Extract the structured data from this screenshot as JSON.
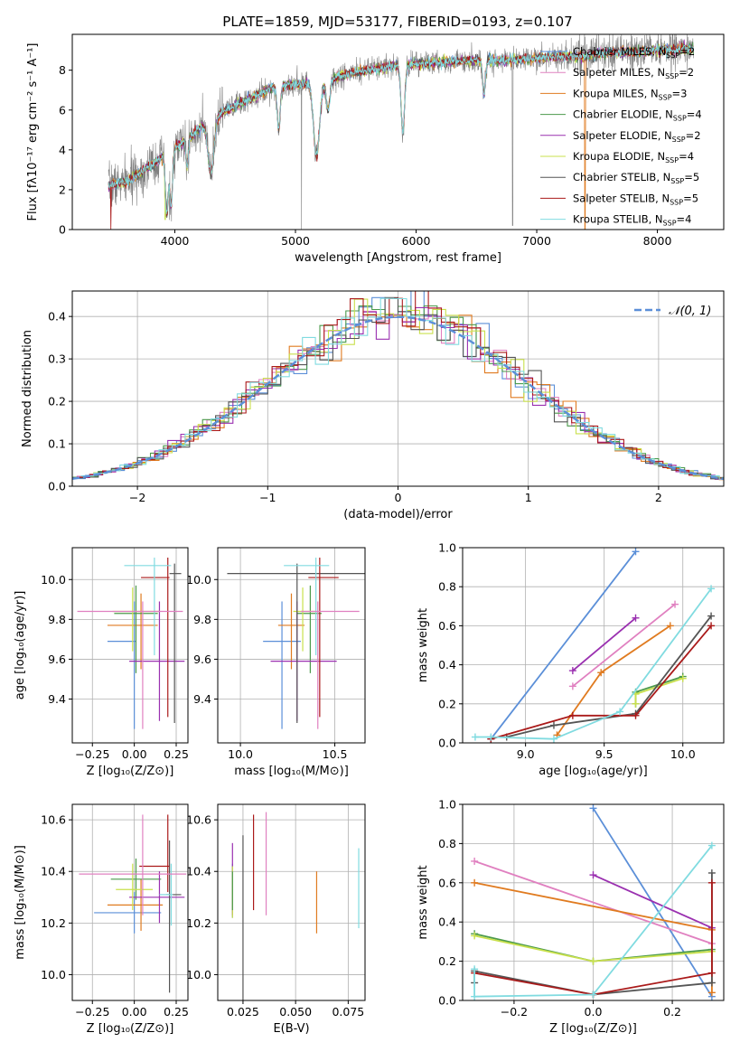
{
  "figure": {
    "title": "PLATE=1859, MJD=53177, FIBERID=0193, z=0.107"
  },
  "colors": {
    "blue": "#5b8fd8",
    "orange": "#e07b20",
    "green": "#4c9a4c",
    "purple": "#9a30b0",
    "yellowgreen": "#c9e04c",
    "gray": "#555555",
    "red": "#aa1a1a",
    "cyan": "#80dbe0",
    "pink": "#e080c0",
    "data": "#808080"
  },
  "chart_data": [
    {
      "id": "spectrum",
      "type": "line",
      "xlabel": "wavelength [Angstrom, rest frame]",
      "ylabel": "Flux [fλ10⁻¹⁷ erg cm⁻² s⁻¹ A⁻¹]",
      "xlim": [
        3150,
        8550
      ],
      "ylim": [
        0,
        9.8
      ],
      "xticks": [
        4000,
        5000,
        6000,
        7000,
        8000
      ],
      "yticks": [
        0,
        2,
        4,
        6,
        8
      ],
      "legend_position": "top-right",
      "continuum": {
        "x": [
          3450,
          3600,
          3800,
          3950,
          4100,
          4300,
          4500,
          4800,
          5000,
          5200,
          5500,
          5800,
          6000,
          6200,
          6500,
          6800,
          7000,
          7200,
          7400,
          7600,
          7800,
          8000,
          8300
        ],
        "y": [
          2.2,
          2.4,
          3.2,
          3.9,
          4.5,
          5.6,
          6.2,
          7.1,
          7.3,
          7.4,
          7.9,
          8.2,
          8.3,
          8.4,
          8.5,
          8.5,
          8.6,
          8.7,
          8.7,
          8.9,
          8.9,
          9.0,
          9.1
        ]
      },
      "series": [
        {
          "name": "Chabrier MILES, N_SSP=2",
          "color": "blue"
        },
        {
          "name": "Salpeter MILES, N_SSP=2",
          "color": "pink"
        },
        {
          "name": "Kroupa MILES, N_SSP=3",
          "color": "orange"
        },
        {
          "name": "Chabrier ELODIE, N_SSP=4",
          "color": "green"
        },
        {
          "name": "Salpeter ELODIE, N_SSP=2",
          "color": "purple"
        },
        {
          "name": "Kroupa ELODIE, N_SSP=4",
          "color": "yellowgreen"
        },
        {
          "name": "Chabrier STELIB, N_SSP=5",
          "color": "gray"
        },
        {
          "name": "Salpeter STELIB, N_SSP=5",
          "color": "red"
        },
        {
          "name": "Kroupa STELIB, N_SSP=4",
          "color": "cyan"
        }
      ]
    },
    {
      "id": "residuals",
      "type": "histogram",
      "xlabel": "(data-model)/error",
      "ylabel": "Normed distribution",
      "xlim": [
        -2.5,
        2.5
      ],
      "ylim": [
        0,
        0.46
      ],
      "xticks": [
        -2,
        -1,
        0,
        1,
        2
      ],
      "yticks": [
        0.0,
        0.1,
        0.2,
        0.3,
        0.4
      ],
      "legend_label": "𝒩(0, 1)",
      "legend_position": "top-right",
      "bin_width": 0.1,
      "series_colors": [
        "blue",
        "pink",
        "orange",
        "green",
        "purple",
        "yellowgreen",
        "gray",
        "red",
        "cyan"
      ]
    },
    {
      "id": "age_vs_Z",
      "type": "errorbar",
      "xlabel": "Z [log₁₀(Z/Z⊙)]",
      "ylabel": "age  [log₁₀(age/yr)]",
      "xlim": [
        -0.37,
        0.32
      ],
      "ylim": [
        9.18,
        10.16
      ],
      "xticks": [
        -0.25,
        0.0,
        0.25
      ],
      "xticklabels": [
        "−0.25",
        "0.00",
        "0.25"
      ],
      "yticks": [
        9.4,
        9.6,
        9.8,
        10.0
      ],
      "points": [
        {
          "color": "blue",
          "x": 0.0,
          "xerr": [
            0.16,
            0.01
          ],
          "y": 9.69,
          "yerr": [
            0.44,
            0.2
          ]
        },
        {
          "color": "orange",
          "x": 0.04,
          "xerr": [
            0.2,
            0.1
          ],
          "y": 9.77,
          "yerr": [
            0.22,
            0.16
          ]
        },
        {
          "color": "green",
          "x": 0.01,
          "xerr": [
            0.13,
            0.13
          ],
          "y": 9.83,
          "yerr": [
            0.3,
            0.14
          ]
        },
        {
          "color": "purple",
          "x": 0.15,
          "xerr": [
            0.18,
            0.15
          ],
          "y": 9.59,
          "yerr": [
            0.3,
            0.3
          ]
        },
        {
          "color": "yellowgreen",
          "x": -0.01,
          "xerr": [
            0.12,
            0.16
          ],
          "y": 9.84,
          "yerr": [
            0.2,
            0.12
          ]
        },
        {
          "color": "gray",
          "x": 0.24,
          "xerr": [
            0.03,
            0.04
          ],
          "y": 10.03,
          "yerr": [
            0.75,
            0.05
          ]
        },
        {
          "color": "red",
          "x": 0.2,
          "xerr": [
            0.16,
            0.01
          ],
          "y": 10.01,
          "yerr": [
            0.7,
            0.1
          ]
        },
        {
          "color": "cyan",
          "x": 0.12,
          "xerr": [
            0.18,
            0.1
          ],
          "y": 10.07,
          "yerr": [
            0.45,
            0.04
          ]
        },
        {
          "color": "pink",
          "x": 0.05,
          "xerr": [
            0.39,
            0.24
          ],
          "y": 9.84,
          "yerr": [
            0.59,
            0.05
          ]
        }
      ]
    },
    {
      "id": "age_vs_mass",
      "type": "errorbar",
      "xlabel": "mass [log₁₀(M/M⊙)]",
      "ylabel": "",
      "xlim": [
        9.88,
        10.66
      ],
      "ylim": [
        9.18,
        10.16
      ],
      "xticks": [
        10.0,
        10.5
      ],
      "xticklabels": [
        "10.0",
        "10.5"
      ],
      "yticks": [
        9.4,
        9.6,
        9.8,
        10.0
      ],
      "points": [
        {
          "color": "blue",
          "x": 10.22,
          "xerr": [
            0.1,
            0.1
          ],
          "y": 9.69,
          "yerr": [
            0.44,
            0.2
          ]
        },
        {
          "color": "orange",
          "x": 10.27,
          "xerr": [
            0.07,
            0.07
          ],
          "y": 9.77,
          "yerr": [
            0.22,
            0.16
          ]
        },
        {
          "color": "green",
          "x": 10.37,
          "xerr": [
            0.07,
            0.06
          ],
          "y": 9.83,
          "yerr": [
            0.3,
            0.14
          ]
        },
        {
          "color": "purple",
          "x": 10.3,
          "xerr": [
            0.14,
            0.21
          ],
          "y": 9.59,
          "yerr": [
            0.3,
            0.3
          ]
        },
        {
          "color": "yellowgreen",
          "x": 10.33,
          "xerr": [
            0.05,
            0.07
          ],
          "y": 9.84,
          "yerr": [
            0.2,
            0.12
          ]
        },
        {
          "color": "gray",
          "x": 10.3,
          "xerr": [
            0.37,
            0.43
          ],
          "y": 10.03,
          "yerr": [
            0.75,
            0.05
          ]
        },
        {
          "color": "red",
          "x": 10.42,
          "xerr": [
            0.06,
            0.1
          ],
          "y": 10.01,
          "yerr": [
            0.7,
            0.1
          ]
        },
        {
          "color": "cyan",
          "x": 10.4,
          "xerr": [
            0.17,
            0.07
          ],
          "y": 10.07,
          "yerr": [
            0.45,
            0.04
          ]
        },
        {
          "color": "pink",
          "x": 10.41,
          "xerr": [
            0.09,
            0.22
          ],
          "y": 9.84,
          "yerr": [
            0.59,
            0.05
          ]
        }
      ]
    },
    {
      "id": "weight_vs_age",
      "type": "line",
      "xlabel": "age  [log₁₀(age/yr)]",
      "ylabel": "mass weight",
      "xlim": [
        8.6,
        10.26
      ],
      "ylim": [
        0.0,
        1.0
      ],
      "xticks": [
        9.0,
        9.5,
        10.0
      ],
      "xticklabels": [
        "9.0",
        "9.5",
        "10.0"
      ],
      "yticks": [
        0.0,
        0.2,
        0.4,
        0.6,
        0.8,
        1.0
      ],
      "series": [
        {
          "color": "blue",
          "x": [
            8.78,
            9.7
          ],
          "y": [
            0.02,
            0.98
          ]
        },
        {
          "color": "pink",
          "x": [
            9.3,
            9.95
          ],
          "y": [
            0.29,
            0.71
          ]
        },
        {
          "color": "purple",
          "x": [
            9.3,
            9.7
          ],
          "y": [
            0.37,
            0.64
          ]
        },
        {
          "color": "orange",
          "x": [
            9.2,
            9.48,
            9.92
          ],
          "y": [
            0.04,
            0.36,
            0.6
          ]
        },
        {
          "color": "green",
          "x": [
            9.7,
            9.7,
            10.0
          ],
          "y": [
            0.2,
            0.26,
            0.34
          ]
        },
        {
          "color": "yellowgreen",
          "x": [
            9.7,
            9.7,
            10.0
          ],
          "y": [
            0.2,
            0.25,
            0.33
          ]
        },
        {
          "color": "gray",
          "x": [
            8.88,
            9.18,
            9.7,
            10.18
          ],
          "y": [
            0.03,
            0.09,
            0.15,
            0.65
          ]
        },
        {
          "color": "red",
          "x": [
            8.78,
            9.3,
            9.7,
            10.18
          ],
          "y": [
            0.02,
            0.14,
            0.14,
            0.6
          ]
        },
        {
          "color": "cyan",
          "x": [
            8.68,
            8.78,
            9.18,
            9.6,
            10.18
          ],
          "y": [
            0.03,
            0.03,
            0.02,
            0.16,
            0.79
          ]
        }
      ]
    },
    {
      "id": "mass_vs_Z",
      "type": "errorbar",
      "xlabel": "Z [log₁₀(Z/Z⊙)]",
      "ylabel": "mass [log₁₀(M/M⊙)]",
      "xlim": [
        -0.37,
        0.32
      ],
      "ylim": [
        9.9,
        10.66
      ],
      "xticks": [
        -0.25,
        0.0,
        0.25
      ],
      "xticklabels": [
        "−0.25",
        "0.00",
        "0.25"
      ],
      "yticks": [
        10.0,
        10.2,
        10.4,
        10.6
      ],
      "points": [
        {
          "color": "blue",
          "x": 0.0,
          "xerr": [
            0.24,
            0.16
          ],
          "y": 10.24,
          "yerr": [
            0.08,
            0.08
          ]
        },
        {
          "color": "orange",
          "x": 0.04,
          "xerr": [
            0.2,
            0.13
          ],
          "y": 10.27,
          "yerr": [
            0.1,
            0.1
          ]
        },
        {
          "color": "green",
          "x": 0.01,
          "xerr": [
            0.15,
            0.15
          ],
          "y": 10.37,
          "yerr": [
            0.08,
            0.08
          ]
        },
        {
          "color": "purple",
          "x": 0.15,
          "xerr": [
            0.18,
            0.15
          ],
          "y": 10.3,
          "yerr": [
            0.1,
            0.1
          ]
        },
        {
          "color": "yellowgreen",
          "x": -0.01,
          "xerr": [
            0.1,
            0.12
          ],
          "y": 10.33,
          "yerr": [
            0.08,
            0.1
          ]
        },
        {
          "color": "gray",
          "x": 0.21,
          "xerr": [
            0.02,
            0.07
          ],
          "y": 10.31,
          "yerr": [
            0.38,
            0.21
          ]
        },
        {
          "color": "red",
          "x": 0.2,
          "xerr": [
            0.17,
            0.01
          ],
          "y": 10.42,
          "yerr": [
            0.1,
            0.2
          ]
        },
        {
          "color": "cyan",
          "x": 0.22,
          "xerr": [
            0.07,
            0.01
          ],
          "y": 10.31,
          "yerr": [
            0.12,
            0.12
          ]
        },
        {
          "color": "pink",
          "x": 0.05,
          "xerr": [
            0.38,
            0.26
          ],
          "y": 10.39,
          "yerr": [
            0.16,
            0.23
          ]
        }
      ]
    },
    {
      "id": "mass_vs_ebv",
      "type": "errorbar",
      "xlabel": "E(B-V)",
      "ylabel": "",
      "xlim": [
        0.013,
        0.083
      ],
      "ylim": [
        9.9,
        10.66
      ],
      "xticks": [
        0.025,
        0.05,
        0.075
      ],
      "xticklabels": [
        "0.025",
        "0.050",
        "0.075"
      ],
      "yticks": [
        10.0,
        10.2,
        10.4,
        10.6
      ],
      "points": [
        {
          "color": "blue",
          "x": 0.02,
          "y": 10.3,
          "yerr": [
            0.08,
            0.13
          ]
        },
        {
          "color": "purple",
          "x": 0.02,
          "y": 10.3,
          "yerr": [
            0.07,
            0.21
          ]
        },
        {
          "color": "yellowgreen",
          "x": 0.02,
          "y": 10.3,
          "yerr": [
            0.08,
            0.12
          ]
        },
        {
          "color": "green",
          "x": 0.02,
          "y": 10.3,
          "yerr": [
            0.05,
            0.1
          ]
        },
        {
          "color": "gray",
          "x": 0.025,
          "y": 10.2,
          "yerr": [
            0.3,
            0.34
          ]
        },
        {
          "color": "red",
          "x": 0.03,
          "y": 10.4,
          "yerr": [
            0.15,
            0.22
          ]
        },
        {
          "color": "pink",
          "x": 0.036,
          "y": 10.4,
          "yerr": [
            0.17,
            0.23
          ]
        },
        {
          "color": "orange",
          "x": 0.06,
          "y": 10.3,
          "yerr": [
            0.14,
            0.1
          ]
        },
        {
          "color": "cyan",
          "x": 0.08,
          "y": 10.3,
          "yerr": [
            0.12,
            0.19
          ]
        }
      ]
    },
    {
      "id": "weight_vs_Z",
      "type": "line",
      "xlabel": "Z [log₁₀(Z/Z⊙)]",
      "ylabel": "mass weight",
      "xlim": [
        -0.33,
        0.33
      ],
      "ylim": [
        0.0,
        1.0
      ],
      "xticks": [
        -0.2,
        0.0,
        0.2
      ],
      "xticklabels": [
        "−0.2",
        "0.0",
        "0.2"
      ],
      "yticks": [
        0.0,
        0.2,
        0.4,
        0.6,
        0.8,
        1.0
      ],
      "series": [
        {
          "color": "blue",
          "x": [
            0.0,
            0.3
          ],
          "y": [
            0.98,
            0.02
          ]
        },
        {
          "color": "pink",
          "x": [
            -0.3,
            0.3
          ],
          "y": [
            0.71,
            0.29
          ]
        },
        {
          "color": "purple",
          "x": [
            0.0,
            0.3
          ],
          "y": [
            0.64,
            0.37
          ]
        },
        {
          "color": "orange",
          "x": [
            -0.3,
            0.3,
            0.3
          ],
          "y": [
            0.6,
            0.36,
            0.04
          ]
        },
        {
          "color": "green",
          "x": [
            -0.3,
            0.0,
            0.3
          ],
          "y": [
            0.34,
            0.2,
            0.26
          ]
        },
        {
          "color": "yellowgreen",
          "x": [
            -0.3,
            0.0,
            0.3
          ],
          "y": [
            0.33,
            0.2,
            0.25
          ]
        },
        {
          "color": "gray",
          "x": [
            -0.3,
            -0.3,
            0.0,
            0.3,
            0.3
          ],
          "y": [
            0.09,
            0.15,
            0.03,
            0.09,
            0.65
          ]
        },
        {
          "color": "red",
          "x": [
            -0.3,
            0.0,
            0.3,
            0.3
          ],
          "y": [
            0.14,
            0.03,
            0.14,
            0.6
          ]
        },
        {
          "color": "cyan",
          "x": [
            -0.3,
            -0.3,
            0.0,
            0.3
          ],
          "y": [
            0.16,
            0.02,
            0.03,
            0.79
          ]
        }
      ]
    }
  ]
}
